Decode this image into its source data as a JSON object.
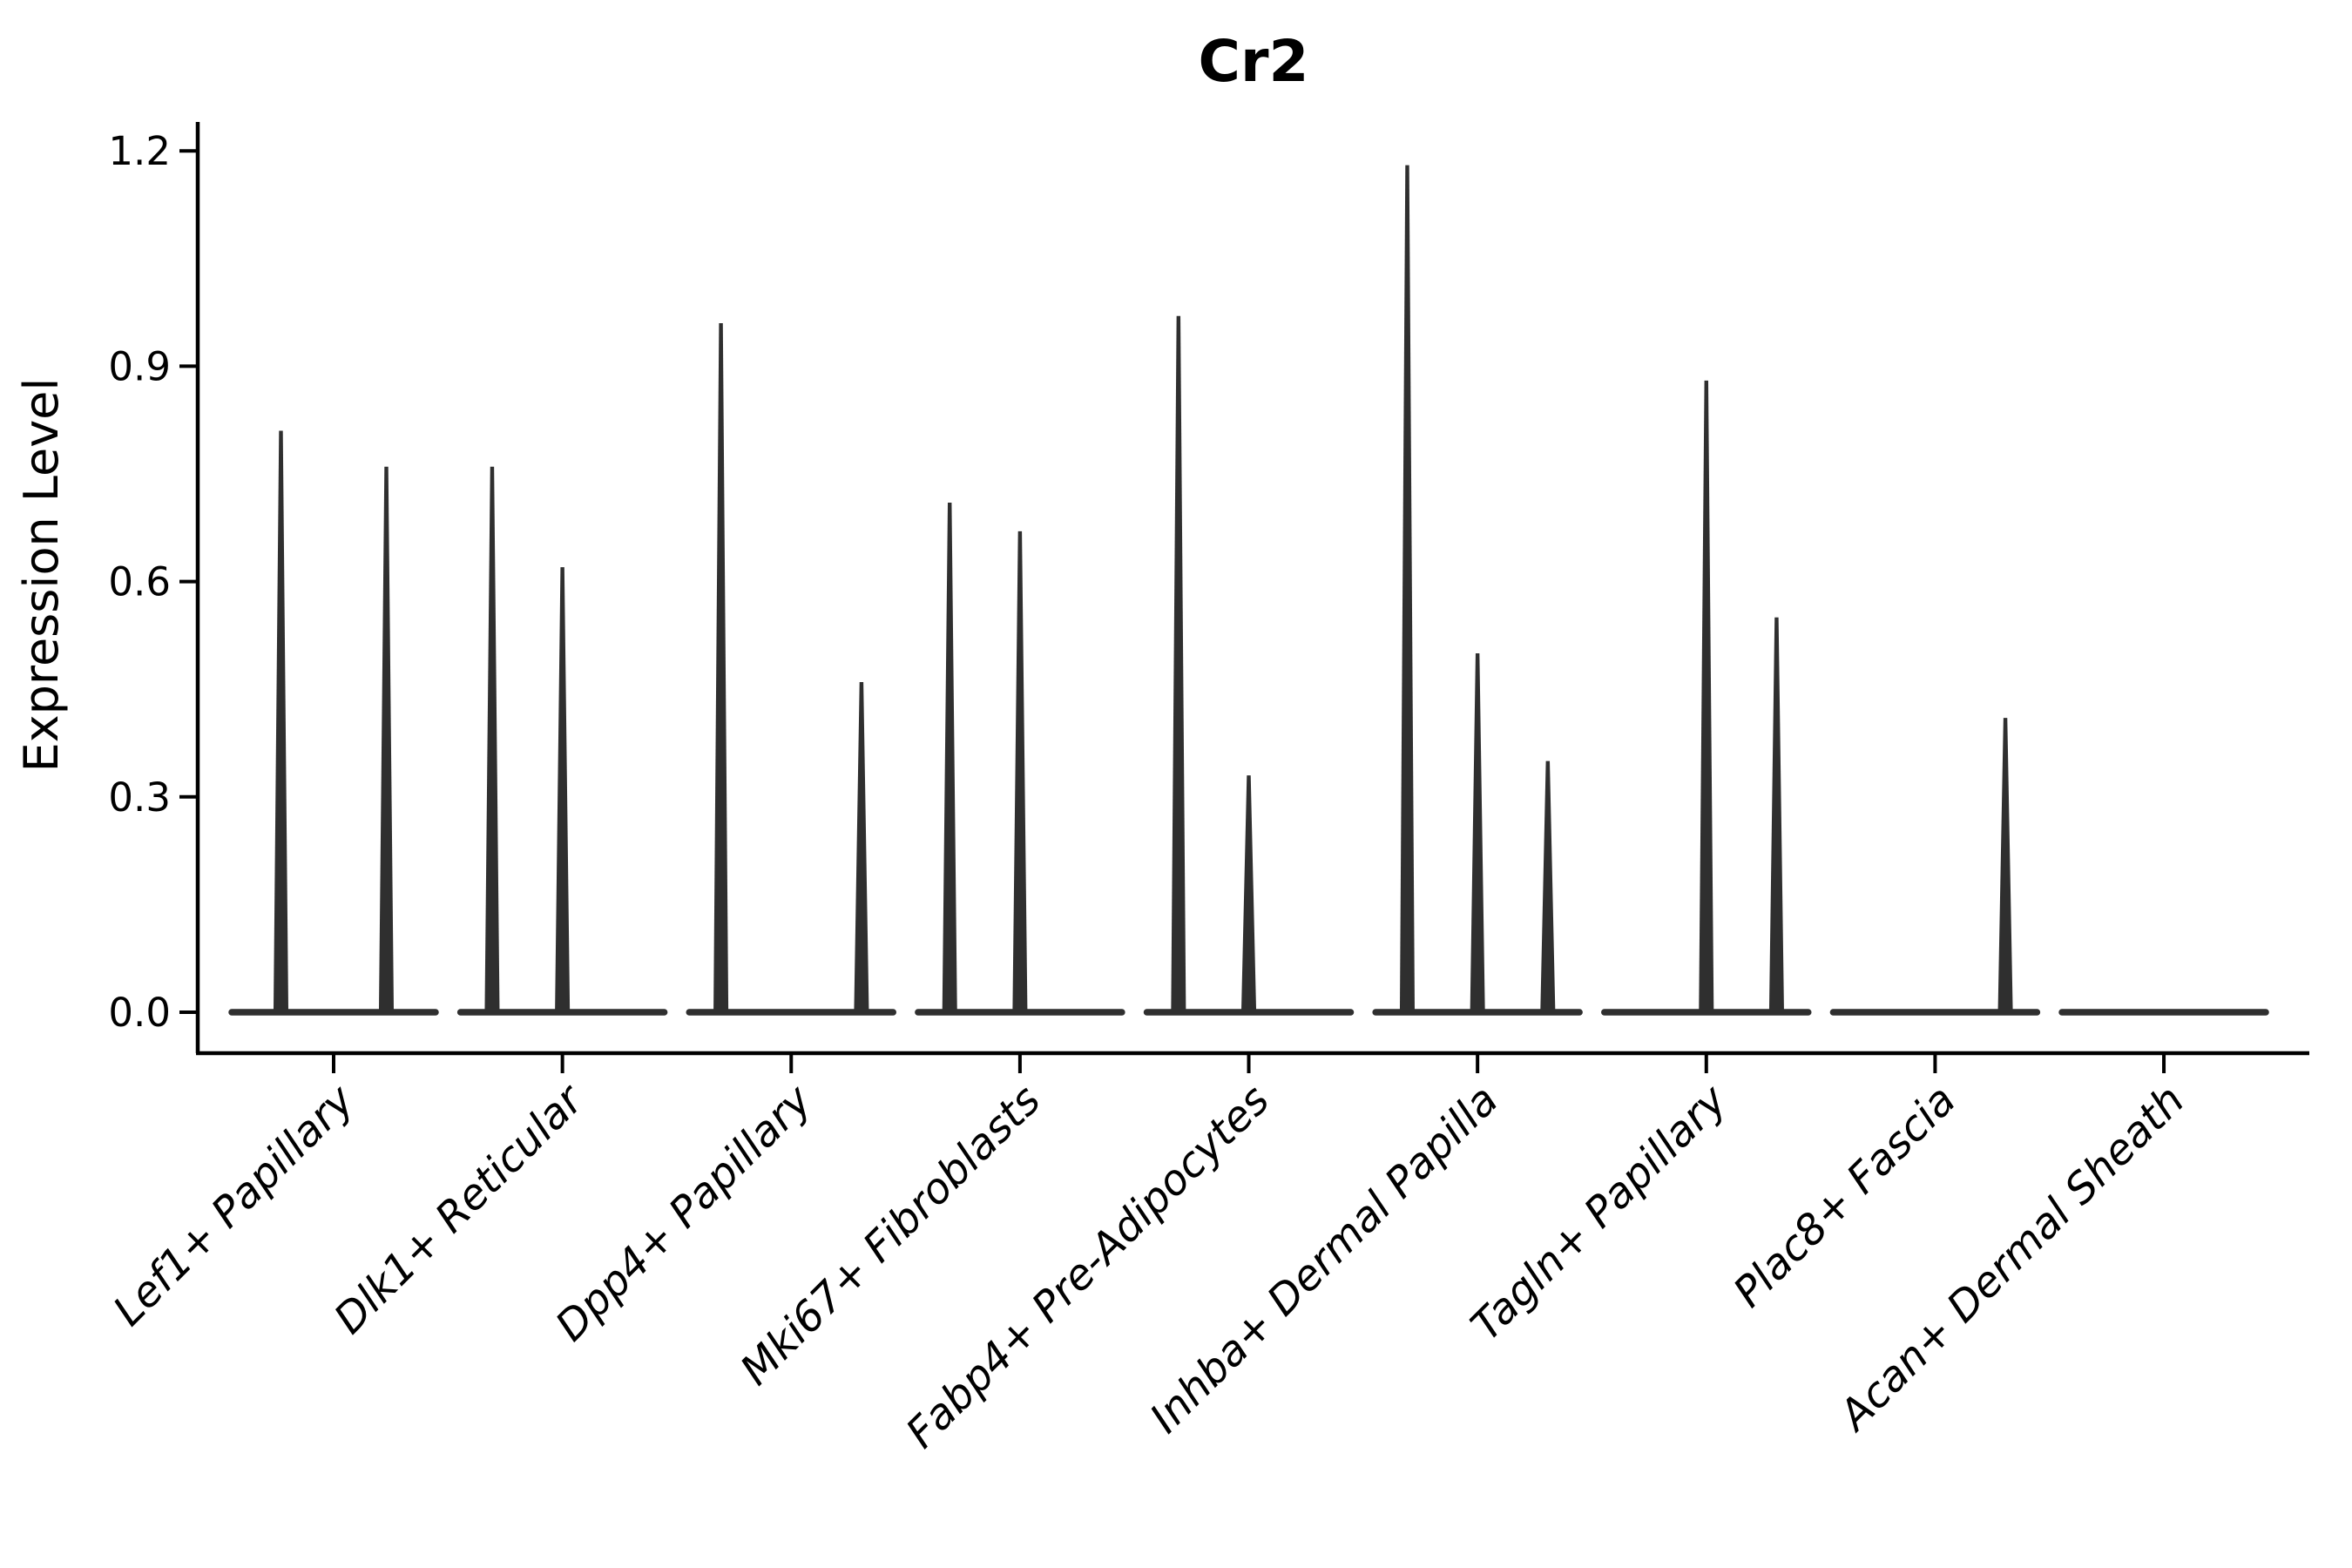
{
  "chart_data": {
    "type": "violin",
    "title": "Cr2",
    "ylabel": "Expression Level",
    "xlabel": "",
    "yticks": [
      0.0,
      0.3,
      0.6,
      0.9,
      1.2
    ],
    "ylim": [
      -0.06,
      1.23
    ],
    "grid": false,
    "legend": "none",
    "categories": [
      "Lef1+ Papillary",
      "Dlk1+ Reticular",
      "Dpp4+ Papillary",
      "Mki67+ Fibroblasts",
      "Fabp4+ Pre-Adipocytes",
      "Inhba+ Dermal Papilla",
      "Tagln+ Papillary",
      "Plac8+ Fascia",
      "Acan+ Dermal Sheath"
    ],
    "groups": [
      {
        "category": "Lef1+ Papillary",
        "violin_max_expression": [
          0.81,
          0.76
        ]
      },
      {
        "category": "Dlk1+ Reticular",
        "violin_max_expression": [
          0.76,
          0.62,
          0
        ]
      },
      {
        "category": "Dpp4+ Papillary",
        "violin_max_expression": [
          0.96,
          0,
          0.46
        ]
      },
      {
        "category": "Mki67+ Fibroblasts",
        "violin_max_expression": [
          0.71,
          0.67,
          0
        ]
      },
      {
        "category": "Fabp4+ Pre-Adipocytes",
        "violin_max_expression": [
          0.97,
          0.33,
          0
        ]
      },
      {
        "category": "Inhba+ Dermal Papilla",
        "violin_max_expression": [
          1.18,
          0.5,
          0.35
        ]
      },
      {
        "category": "Tagln+ Papillary",
        "violin_max_expression": [
          0,
          0.88,
          0.55
        ]
      },
      {
        "category": "Plac8+ Fascia",
        "violin_max_expression": [
          0,
          0,
          0.41
        ]
      },
      {
        "category": "Acan+ Dermal Sheath",
        "violin_max_expression": [
          0
        ]
      }
    ],
    "annotation_note": "Each category shows thin violin(s); bulk of cells at expression 0 (flat baseline), needle spikes reach listed max expression"
  },
  "colors": {
    "background": "#ffffff",
    "axis_ink": "#000000",
    "violin_stroke": "#2f2f2f"
  }
}
